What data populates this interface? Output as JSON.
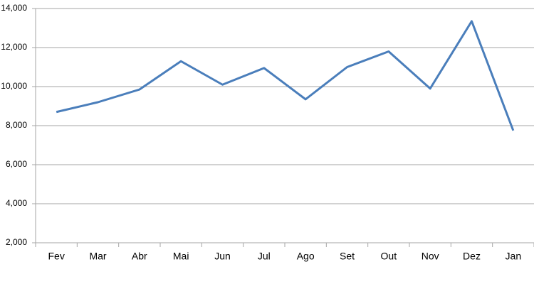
{
  "chart_data": {
    "type": "line",
    "categories": [
      "Fev",
      "Mar",
      "Abr",
      "Mai",
      "Jun",
      "Jul",
      "Ago",
      "Set",
      "Out",
      "Nov",
      "Dez",
      "Jan"
    ],
    "series": [
      {
        "color": "#4a7ebb",
        "values": [
          8700,
          9200,
          9850,
          11300,
          10100,
          10950,
          9350,
          11000,
          11800,
          9900,
          13350,
          7750
        ]
      }
    ],
    "ylim": [
      2000,
      14000
    ],
    "yticks": [
      {
        "value": 2000,
        "label": "2,000"
      },
      {
        "value": 4000,
        "label": "4,000"
      },
      {
        "value": 6000,
        "label": "6,000"
      },
      {
        "value": 8000,
        "label": "8,000"
      },
      {
        "value": 10000,
        "label": "10,000"
      },
      {
        "value": 12000,
        "label": "12,000"
      },
      {
        "value": 14000,
        "label": "14,000"
      }
    ],
    "grid": true
  }
}
